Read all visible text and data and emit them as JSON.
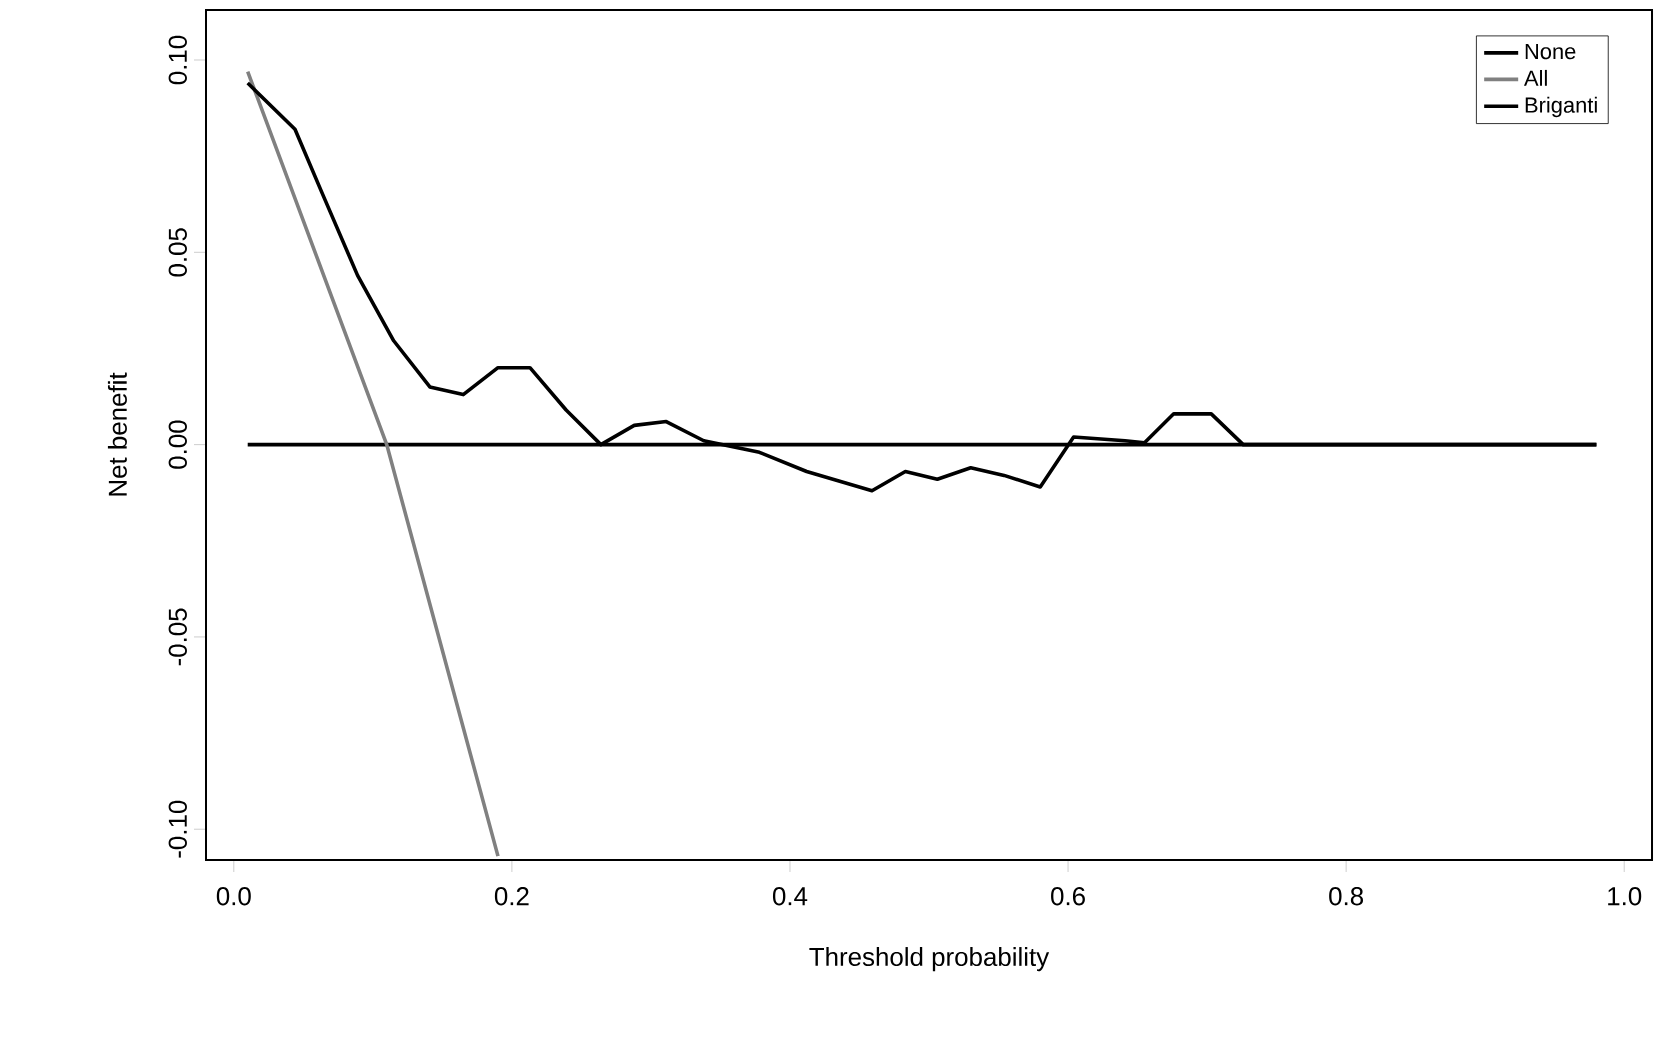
{
  "chart_data": {
    "type": "line",
    "xlabel": "Threshold probability",
    "ylabel": "Net benefit",
    "xlim": [
      -0.02,
      1.02
    ],
    "ylim": [
      -0.108,
      0.113
    ],
    "xticks": [
      {
        "value": 0,
        "label": "0.0"
      },
      {
        "value": 0.2,
        "label": "0.2"
      },
      {
        "value": 0.4,
        "label": "0.4"
      },
      {
        "value": 0.6,
        "label": "0.6"
      },
      {
        "value": 0.8,
        "label": "0.8"
      },
      {
        "value": 1,
        "label": "1.0"
      }
    ],
    "yticks": [
      {
        "value": -0.1,
        "label": "-0.10"
      },
      {
        "value": -0.05,
        "label": "-0.05"
      },
      {
        "value": 0,
        "label": "0.00"
      },
      {
        "value": 0.05,
        "label": "0.05"
      },
      {
        "value": 0.1,
        "label": "0.10"
      }
    ],
    "legend": "top right",
    "grid": false,
    "marker": "none",
    "line_style": "solid",
    "series": [
      {
        "name": "None",
        "color": "#000000",
        "x": [
          0.01,
          0.98
        ],
        "values": [
          0,
          0
        ]
      },
      {
        "name": "All",
        "color": "#808080",
        "x": [
          0.01,
          0.11,
          0.19
        ],
        "values": [
          0.097,
          0.0,
          -0.107
        ]
      },
      {
        "name": "Briganti",
        "color": "#000000",
        "x": [
          0.01,
          0.044,
          0.064,
          0.089,
          0.115,
          0.141,
          0.165,
          0.19,
          0.213,
          0.239,
          0.264,
          0.288,
          0.311,
          0.338,
          0.378,
          0.412,
          0.459,
          0.483,
          0.506,
          0.53,
          0.554,
          0.58,
          0.604,
          0.641,
          0.655,
          0.676,
          0.703,
          0.726,
          0.98
        ],
        "values": [
          0.094,
          0.082,
          0.065,
          0.044,
          0.027,
          0.015,
          0.013,
          0.02,
          0.02,
          0.009,
          0.0,
          0.005,
          0.006,
          0.001,
          -0.002,
          -0.007,
          -0.012,
          -0.007,
          -0.009,
          -0.006,
          -0.008,
          -0.011,
          0.002,
          0.001,
          0.0005,
          0.008,
          0.008,
          0.0,
          0.0
        ]
      }
    ]
  }
}
